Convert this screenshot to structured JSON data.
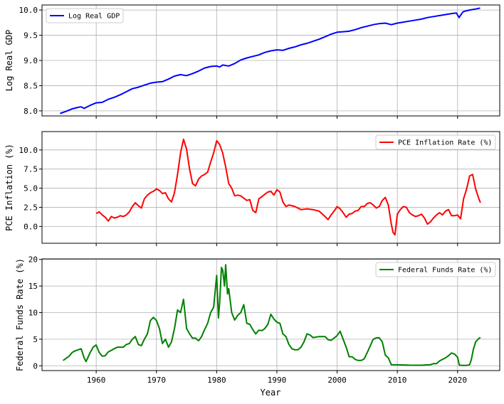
{
  "figure": {
    "xlabel": "Year",
    "xticks": [
      1960,
      1970,
      1980,
      1990,
      2000,
      2010,
      2020
    ],
    "xlim": [
      1951,
      2027
    ],
    "grid": true
  },
  "chart_data": [
    {
      "type": "line",
      "ylabel": "Log Real GDP",
      "ylim": [
        7.9,
        10.1
      ],
      "yticks": [
        8.0,
        8.5,
        9.0,
        9.5,
        10.0
      ],
      "ytick_labels": [
        "8.0",
        "8.5",
        "9.0",
        "9.5",
        "10.0"
      ],
      "legend_placement": "top-left",
      "series": [
        {
          "name": "Log Real GDP",
          "color": "#0000ff",
          "x": [
            1954.0,
            1955.0,
            1956.0,
            1957.0,
            1957.5,
            1958.0,
            1959.0,
            1960.0,
            1961.0,
            1962.0,
            1963.0,
            1964.0,
            1965.0,
            1966.0,
            1967.0,
            1968.0,
            1969.0,
            1970.0,
            1971.0,
            1972.0,
            1973.0,
            1974.0,
            1975.0,
            1976.0,
            1977.0,
            1978.0,
            1979.0,
            1980.0,
            1980.5,
            1981.0,
            1982.0,
            1983.0,
            1984.0,
            1985.0,
            1986.0,
            1987.0,
            1988.0,
            1989.0,
            1990.0,
            1991.0,
            1992.0,
            1993.0,
            1994.0,
            1995.0,
            1996.0,
            1997.0,
            1998.0,
            1999.0,
            2000.0,
            2001.0,
            2002.0,
            2003.0,
            2004.0,
            2005.0,
            2006.0,
            2007.0,
            2008.0,
            2009.0,
            2010.0,
            2011.0,
            2012.0,
            2013.0,
            2014.0,
            2015.0,
            2016.0,
            2017.0,
            2018.0,
            2019.0,
            2019.8,
            2020.25,
            2020.75,
            2021.0,
            2022.0,
            2023.0,
            2023.75
          ],
          "y": [
            7.95,
            7.99,
            8.04,
            8.07,
            8.08,
            8.05,
            8.11,
            8.16,
            8.17,
            8.23,
            8.27,
            8.32,
            8.38,
            8.44,
            8.47,
            8.51,
            8.55,
            8.57,
            8.58,
            8.63,
            8.69,
            8.72,
            8.7,
            8.74,
            8.79,
            8.85,
            8.88,
            8.89,
            8.87,
            8.91,
            8.89,
            8.94,
            9.01,
            9.05,
            9.08,
            9.11,
            9.16,
            9.19,
            9.21,
            9.2,
            9.24,
            9.27,
            9.31,
            9.34,
            9.38,
            9.42,
            9.47,
            9.52,
            9.56,
            9.57,
            9.58,
            9.61,
            9.65,
            9.68,
            9.71,
            9.73,
            9.74,
            9.71,
            9.74,
            9.76,
            9.78,
            9.8,
            9.82,
            9.85,
            9.87,
            9.89,
            9.91,
            9.93,
            9.94,
            9.85,
            9.94,
            9.97,
            10.0,
            10.02,
            10.04
          ]
        }
      ]
    },
    {
      "type": "line",
      "ylabel": "PCE Inflation (%)",
      "ylim": [
        -2.2,
        12.4
      ],
      "yticks": [
        0.0,
        2.5,
        5.0,
        7.5,
        10.0
      ],
      "ytick_labels": [
        "0.0",
        "2.5",
        "5.0",
        "7.5",
        "10.0"
      ],
      "legend_placement": "top-right",
      "series": [
        {
          "name": "PCE Inflation Rate (%)",
          "color": "#ff0000",
          "x": [
            1960.0,
            1960.5,
            1961.0,
            1961.5,
            1962.0,
            1962.5,
            1963.0,
            1963.5,
            1964.0,
            1964.5,
            1965.0,
            1965.5,
            1966.0,
            1966.5,
            1967.0,
            1967.5,
            1968.0,
            1968.5,
            1969.0,
            1969.5,
            1970.0,
            1970.5,
            1971.0,
            1971.5,
            1972.0,
            1972.5,
            1973.0,
            1973.5,
            1974.0,
            1974.5,
            1975.0,
            1975.5,
            1976.0,
            1976.5,
            1977.0,
            1977.5,
            1978.0,
            1978.5,
            1979.0,
            1979.5,
            1980.0,
            1980.5,
            1981.0,
            1981.5,
            1982.0,
            1982.5,
            1983.0,
            1983.5,
            1984.0,
            1984.5,
            1985.0,
            1985.5,
            1986.0,
            1986.5,
            1987.0,
            1987.5,
            1988.0,
            1988.5,
            1989.0,
            1989.5,
            1990.0,
            1990.5,
            1991.0,
            1991.5,
            1992.0,
            1993.0,
            1994.0,
            1995.0,
            1996.0,
            1997.0,
            1998.0,
            1998.5,
            1999.0,
            1999.5,
            2000.0,
            2000.5,
            2001.0,
            2001.5,
            2002.0,
            2002.5,
            2003.0,
            2003.5,
            2004.0,
            2004.5,
            2005.0,
            2005.5,
            2006.0,
            2006.5,
            2007.0,
            2007.5,
            2008.0,
            2008.5,
            2009.0,
            2009.3,
            2009.6,
            2010.0,
            2010.5,
            2011.0,
            2011.5,
            2012.0,
            2012.5,
            2013.0,
            2013.5,
            2014.0,
            2014.5,
            2015.0,
            2015.5,
            2016.0,
            2016.5,
            2017.0,
            2017.5,
            2018.0,
            2018.5,
            2019.0,
            2019.5,
            2020.0,
            2020.5,
            2021.0,
            2021.5,
            2022.0,
            2022.5,
            2023.0,
            2023.5,
            2023.8
          ],
          "y": [
            1.7,
            1.9,
            1.5,
            1.2,
            0.7,
            1.3,
            1.1,
            1.2,
            1.4,
            1.3,
            1.5,
            1.9,
            2.6,
            3.1,
            2.7,
            2.4,
            3.6,
            4.1,
            4.4,
            4.6,
            4.9,
            4.7,
            4.3,
            4.4,
            3.6,
            3.2,
            4.4,
            6.8,
            9.6,
            11.4,
            10.1,
            7.5,
            5.6,
            5.3,
            6.2,
            6.6,
            6.8,
            7.1,
            8.4,
            9.6,
            11.2,
            10.7,
            9.6,
            7.8,
            5.6,
            5.0,
            4.0,
            4.1,
            4.0,
            3.7,
            3.4,
            3.5,
            2.1,
            1.8,
            3.6,
            3.9,
            4.2,
            4.5,
            4.6,
            4.1,
            4.8,
            4.5,
            3.2,
            2.6,
            2.8,
            2.6,
            2.2,
            2.3,
            2.2,
            2.0,
            1.3,
            0.9,
            1.5,
            2.0,
            2.6,
            2.3,
            1.8,
            1.2,
            1.6,
            1.7,
            2.0,
            2.1,
            2.6,
            2.6,
            3.0,
            3.1,
            2.8,
            2.4,
            2.6,
            3.4,
            3.8,
            2.8,
            0.3,
            -0.8,
            -1.1,
            1.6,
            2.2,
            2.6,
            2.5,
            1.8,
            1.5,
            1.3,
            1.4,
            1.6,
            1.1,
            0.3,
            0.6,
            1.1,
            1.5,
            1.8,
            1.5,
            2.0,
            2.2,
            1.4,
            1.4,
            1.5,
            1.0,
            3.6,
            4.9,
            6.6,
            6.8,
            4.9,
            3.7,
            3.1
          ]
        }
      ]
    },
    {
      "type": "line",
      "ylabel": "Federal Funds Rate (%)",
      "ylim": [
        -0.9,
        20.1
      ],
      "yticks": [
        0,
        5,
        10,
        15,
        20
      ],
      "ytick_labels": [
        "0",
        "5",
        "10",
        "15",
        "20"
      ],
      "legend_placement": "top-right",
      "series": [
        {
          "name": "Federal Funds Rate (%)",
          "color": "#008000",
          "x": [
            1954.5,
            1955.0,
            1955.5,
            1956.0,
            1956.5,
            1957.0,
            1957.5,
            1958.0,
            1958.3,
            1958.6,
            1959.0,
            1959.5,
            1960.0,
            1960.5,
            1961.0,
            1961.5,
            1962.0,
            1962.5,
            1963.0,
            1963.5,
            1964.0,
            1964.5,
            1965.0,
            1965.5,
            1966.0,
            1966.5,
            1967.0,
            1967.5,
            1968.0,
            1968.5,
            1969.0,
            1969.5,
            1970.0,
            1970.5,
            1971.0,
            1971.5,
            1972.0,
            1972.5,
            1973.0,
            1973.5,
            1974.0,
            1974.5,
            1975.0,
            1975.5,
            1976.0,
            1976.5,
            1977.0,
            1977.5,
            1978.0,
            1978.5,
            1979.0,
            1979.5,
            1980.0,
            1980.3,
            1980.5,
            1980.8,
            1981.0,
            1981.3,
            1981.5,
            1981.8,
            1982.0,
            1982.5,
            1983.0,
            1983.5,
            1984.0,
            1984.5,
            1985.0,
            1985.5,
            1986.0,
            1986.5,
            1987.0,
            1987.5,
            1988.0,
            1988.5,
            1989.0,
            1989.5,
            1990.0,
            1990.5,
            1991.0,
            1991.5,
            1992.0,
            1992.5,
            1993.0,
            1993.5,
            1994.0,
            1994.5,
            1995.0,
            1995.5,
            1996.0,
            1997.0,
            1998.0,
            1998.5,
            1999.0,
            1999.5,
            2000.0,
            2000.5,
            2001.0,
            2001.5,
            2002.0,
            2002.5,
            2003.0,
            2003.5,
            2004.0,
            2004.5,
            2005.0,
            2006.0,
            2006.5,
            2007.0,
            2007.5,
            2008.0,
            2008.5,
            2009.0,
            2010.0,
            2012.0,
            2014.0,
            2015.5,
            2016.0,
            2016.5,
            2017.0,
            2017.5,
            2018.0,
            2018.5,
            2019.0,
            2019.5,
            2020.0,
            2020.3,
            2021.0,
            2021.5,
            2022.0,
            2022.3,
            2022.6,
            2023.0,
            2023.5,
            2023.8
          ],
          "y": [
            1.0,
            1.4,
            1.8,
            2.5,
            2.8,
            3.0,
            3.2,
            1.5,
            0.8,
            1.5,
            2.5,
            3.5,
            3.9,
            2.5,
            1.8,
            1.9,
            2.6,
            2.9,
            3.2,
            3.5,
            3.5,
            3.5,
            4.0,
            4.2,
            5.0,
            5.5,
            4.0,
            3.8,
            5.0,
            6.0,
            8.5,
            9.1,
            8.5,
            7.0,
            4.2,
            5.0,
            3.5,
            4.5,
            7.0,
            10.5,
            10.0,
            12.5,
            7.0,
            6.0,
            5.2,
            5.2,
            4.7,
            5.5,
            6.8,
            8.0,
            10.0,
            11.0,
            17.0,
            9.0,
            12.0,
            18.5,
            18.0,
            15.0,
            19.0,
            13.5,
            14.5,
            10.0,
            8.6,
            9.5,
            10.0,
            11.5,
            8.0,
            7.8,
            6.8,
            6.0,
            6.7,
            6.6,
            7.0,
            7.8,
            9.7,
            8.8,
            8.2,
            8.0,
            6.0,
            5.5,
            4.0,
            3.2,
            3.0,
            3.0,
            3.5,
            4.5,
            6.0,
            5.8,
            5.3,
            5.5,
            5.5,
            4.9,
            4.8,
            5.2,
            5.7,
            6.5,
            5.0,
            3.5,
            1.7,
            1.7,
            1.2,
            1.0,
            1.0,
            1.3,
            2.5,
            5.0,
            5.25,
            5.25,
            4.5,
            2.0,
            1.5,
            0.2,
            0.18,
            0.12,
            0.1,
            0.2,
            0.4,
            0.4,
            0.9,
            1.2,
            1.5,
            1.9,
            2.4,
            2.2,
            1.6,
            0.1,
            0.08,
            0.08,
            0.2,
            1.2,
            3.0,
            4.5,
            5.1,
            5.33
          ]
        }
      ]
    }
  ]
}
